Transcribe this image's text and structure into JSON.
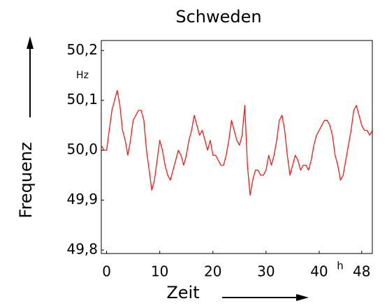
{
  "chart_data": {
    "type": "line",
    "title": "Schweden",
    "x_label": "Zeit",
    "y_label": "Frequenz",
    "x_unit": "h",
    "y_unit": "Hz",
    "xlim": [
      -1,
      50
    ],
    "ylim": [
      49.793,
      50.22
    ],
    "xticks": [
      0,
      10,
      20,
      30,
      40,
      48
    ],
    "yticks": [
      {
        "value": 49.8,
        "label": "49,8"
      },
      {
        "value": 49.9,
        "label": "49,9"
      },
      {
        "value": 50.0,
        "label": "50,0"
      },
      {
        "value": 50.1,
        "label": "50,1"
      },
      {
        "value": 50.2,
        "label": "50,2"
      }
    ],
    "x": [
      -1,
      -0.5,
      0,
      0.5,
      1,
      1.5,
      2,
      2.5,
      3,
      3.5,
      4,
      4.5,
      5,
      5.5,
      6,
      6.5,
      7,
      7.5,
      8,
      8.5,
      9,
      9.5,
      10,
      10.5,
      11,
      11.5,
      12,
      12.5,
      13,
      13.5,
      14,
      14.5,
      15,
      15.5,
      16,
      16.5,
      17,
      17.5,
      18,
      18.5,
      19,
      19.5,
      20,
      20.5,
      21,
      21.5,
      22,
      22.5,
      23,
      23.5,
      24,
      24.5,
      25,
      25.5,
      26,
      26.5,
      27,
      27.5,
      28,
      28.5,
      29,
      29.5,
      30,
      30.5,
      31,
      31.5,
      32,
      32.5,
      33,
      33.5,
      34,
      34.5,
      35,
      35.5,
      36,
      36.5,
      37,
      37.5,
      38,
      38.5,
      39,
      39.5,
      40,
      40.5,
      41,
      41.5,
      42,
      42.5,
      43,
      43.5,
      44,
      44.5,
      45,
      45.5,
      46,
      46.5,
      47,
      47.5,
      48,
      48.5,
      49,
      49.5,
      50
    ],
    "series": [
      {
        "color": "#ee1c1c",
        "values": [
          50.01,
          50.0,
          50.0,
          50.04,
          50.08,
          50.1,
          50.12,
          50.09,
          50.04,
          50.02,
          49.99,
          50.02,
          50.06,
          50.07,
          50.08,
          50.08,
          50.06,
          50.0,
          49.96,
          49.92,
          49.94,
          49.98,
          50.02,
          50.0,
          49.97,
          49.95,
          49.94,
          49.96,
          49.98,
          50.0,
          49.99,
          49.97,
          49.99,
          50.02,
          50.04,
          50.07,
          50.05,
          50.03,
          50.04,
          50.02,
          50.0,
          50.02,
          49.99,
          49.99,
          49.98,
          49.97,
          49.97,
          49.99,
          50.02,
          50.06,
          50.04,
          50.02,
          50.01,
          50.03,
          50.09,
          49.97,
          49.91,
          49.94,
          49.96,
          49.96,
          49.95,
          49.95,
          49.96,
          49.99,
          49.97,
          49.99,
          50.02,
          50.06,
          50.07,
          50.04,
          49.99,
          49.95,
          49.97,
          49.99,
          49.98,
          49.96,
          49.97,
          49.97,
          49.96,
          49.98,
          50.01,
          50.03,
          50.04,
          50.05,
          50.06,
          50.06,
          50.05,
          50.03,
          49.99,
          49.97,
          49.94,
          49.95,
          49.98,
          50.01,
          50.04,
          50.08,
          50.09,
          50.07,
          50.05,
          50.04,
          50.04,
          50.03,
          50.04
        ]
      }
    ]
  }
}
